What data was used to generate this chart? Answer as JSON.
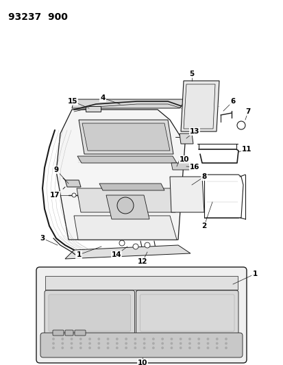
{
  "title": "93237  900",
  "bg": "#ffffff",
  "lc": "#1a1a1a",
  "tc": "#000000",
  "figsize": [
    4.14,
    5.33
  ],
  "dpi": 100,
  "title_fs": 10,
  "label_fs": 7.5
}
